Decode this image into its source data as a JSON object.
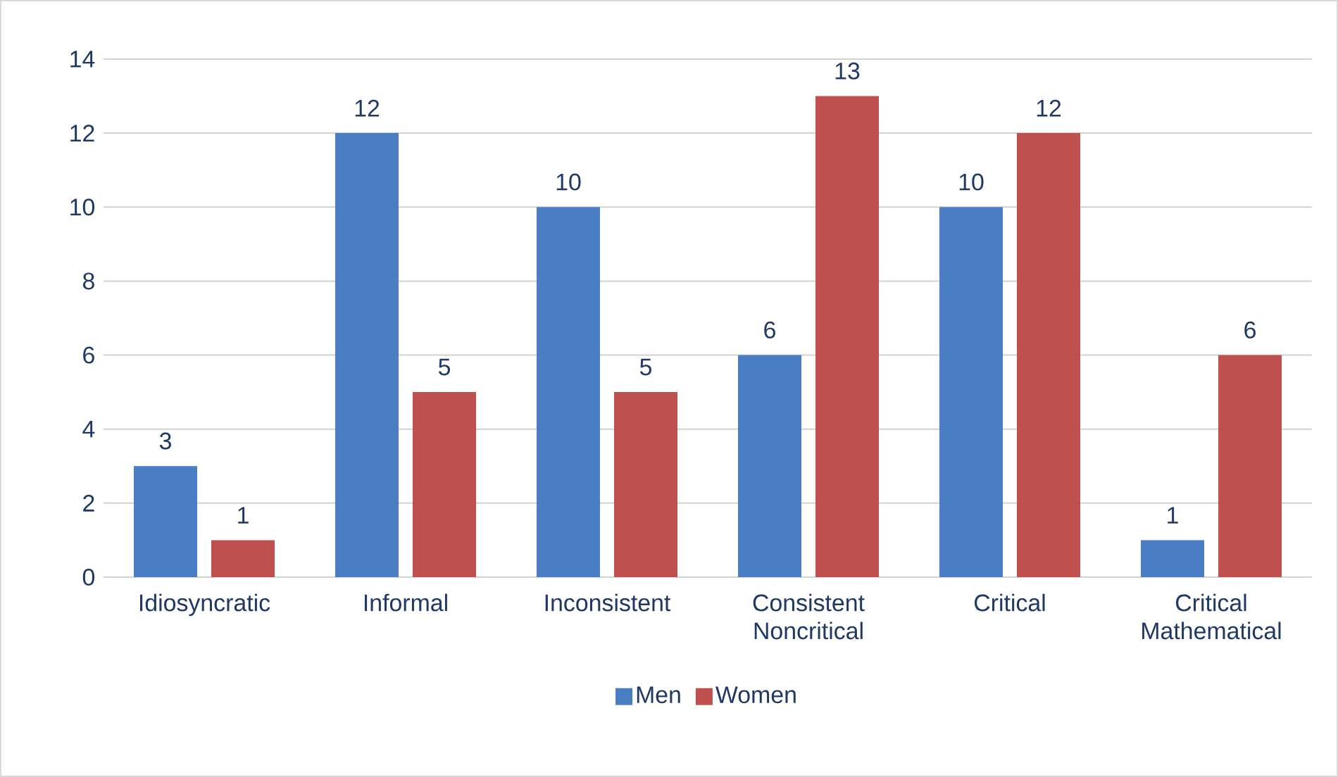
{
  "chart_data": {
    "type": "bar",
    "categories": [
      "Idiosyncratic",
      "Informal",
      "Inconsistent",
      "Consistent Noncritical",
      "Critical",
      "Critical Mathematical"
    ],
    "series": [
      {
        "name": "Men",
        "color": "#4a7ec4",
        "values": [
          3,
          12,
          10,
          6,
          10,
          1
        ]
      },
      {
        "name": "Women",
        "color": "#c0504d",
        "values": [
          1,
          5,
          5,
          13,
          12,
          6
        ]
      }
    ],
    "ylim": [
      0,
      14
    ],
    "yticks": [
      0,
      2,
      4,
      6,
      8,
      10,
      12,
      14
    ],
    "grid": "y",
    "legend": "bottom",
    "data_labels": true
  }
}
